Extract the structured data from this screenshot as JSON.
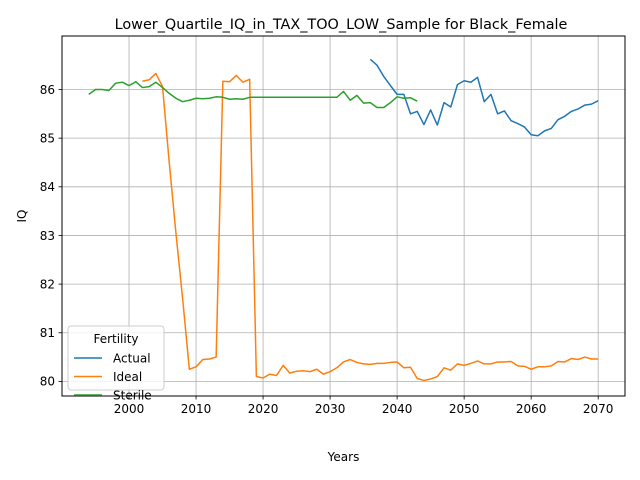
{
  "chart_data": {
    "type": "line",
    "title": "Lower_Quartile_IQ_in_TAX_TOO_LOW_Sample for Black_Female",
    "xlabel": "Years",
    "ylabel": "IQ",
    "xlim": [
      1990,
      2074
    ],
    "ylim": [
      79.7,
      87.1
    ],
    "xticks": [
      2000,
      2010,
      2020,
      2030,
      2040,
      2050,
      2060,
      2070
    ],
    "yticks": [
      80,
      81,
      82,
      83,
      84,
      85,
      86
    ],
    "grid": true,
    "legend": {
      "title": "Fertility",
      "position": "lower-left"
    },
    "series": [
      {
        "name": "Actual",
        "color": "#1f77b4",
        "points": [
          [
            2036,
            86.62
          ],
          [
            2037,
            86.5
          ],
          [
            2038,
            86.27
          ],
          [
            2039,
            86.08
          ],
          [
            2040,
            85.9
          ],
          [
            2041,
            85.9
          ],
          [
            2042,
            85.5
          ],
          [
            2043,
            85.55
          ],
          [
            2044,
            85.28
          ],
          [
            2045,
            85.58
          ],
          [
            2046,
            85.27
          ],
          [
            2047,
            85.73
          ],
          [
            2048,
            85.64
          ],
          [
            2049,
            86.1
          ],
          [
            2050,
            86.18
          ],
          [
            2051,
            86.15
          ],
          [
            2052,
            86.25
          ],
          [
            2053,
            85.75
          ],
          [
            2054,
            85.9
          ],
          [
            2055,
            85.5
          ],
          [
            2056,
            85.56
          ],
          [
            2057,
            85.36
          ],
          [
            2058,
            85.3
          ],
          [
            2059,
            85.23
          ],
          [
            2060,
            85.07
          ],
          [
            2061,
            85.05
          ],
          [
            2062,
            85.15
          ],
          [
            2063,
            85.2
          ],
          [
            2064,
            85.38
          ],
          [
            2065,
            85.45
          ],
          [
            2066,
            85.55
          ],
          [
            2067,
            85.6
          ],
          [
            2068,
            85.68
          ],
          [
            2069,
            85.7
          ],
          [
            2070,
            85.77
          ]
        ]
      },
      {
        "name": "Ideal",
        "color": "#ff7f0e",
        "points": [
          [
            2002,
            86.17
          ],
          [
            2003,
            86.2
          ],
          [
            2004,
            86.33
          ],
          [
            2005,
            86.06
          ],
          [
            2006,
            84.5
          ],
          [
            2007,
            83.05
          ],
          [
            2008,
            81.7
          ],
          [
            2009,
            80.25
          ],
          [
            2010,
            80.3
          ],
          [
            2011,
            80.45
          ],
          [
            2012,
            80.46
          ],
          [
            2013,
            80.5
          ],
          [
            2014,
            86.17
          ],
          [
            2015,
            86.16
          ],
          [
            2016,
            86.29
          ],
          [
            2017,
            86.15
          ],
          [
            2018,
            86.21
          ],
          [
            2019,
            80.1
          ],
          [
            2020,
            80.07
          ],
          [
            2021,
            80.15
          ],
          [
            2022,
            80.12
          ],
          [
            2023,
            80.33
          ],
          [
            2024,
            80.17
          ],
          [
            2025,
            80.21
          ],
          [
            2026,
            80.22
          ],
          [
            2027,
            80.2
          ],
          [
            2028,
            80.25
          ],
          [
            2029,
            80.15
          ],
          [
            2030,
            80.2
          ],
          [
            2031,
            80.28
          ],
          [
            2032,
            80.4
          ],
          [
            2033,
            80.45
          ],
          [
            2034,
            80.39
          ],
          [
            2035,
            80.36
          ],
          [
            2036,
            80.35
          ],
          [
            2037,
            80.37
          ],
          [
            2038,
            80.37
          ],
          [
            2039,
            80.39
          ],
          [
            2040,
            80.4
          ],
          [
            2041,
            80.28
          ],
          [
            2042,
            80.29
          ],
          [
            2043,
            80.06
          ],
          [
            2044,
            80.02
          ],
          [
            2045,
            80.05
          ],
          [
            2046,
            80.1
          ],
          [
            2047,
            80.28
          ],
          [
            2048,
            80.23
          ],
          [
            2049,
            80.36
          ],
          [
            2050,
            80.33
          ],
          [
            2051,
            80.37
          ],
          [
            2052,
            80.42
          ],
          [
            2053,
            80.36
          ],
          [
            2054,
            80.36
          ],
          [
            2055,
            80.4
          ],
          [
            2056,
            80.4
          ],
          [
            2057,
            80.41
          ],
          [
            2058,
            80.32
          ],
          [
            2059,
            80.31
          ],
          [
            2060,
            80.25
          ],
          [
            2061,
            80.3
          ],
          [
            2062,
            80.3
          ],
          [
            2063,
            80.32
          ],
          [
            2064,
            80.41
          ],
          [
            2065,
            80.4
          ],
          [
            2066,
            80.47
          ],
          [
            2067,
            80.45
          ],
          [
            2068,
            80.5
          ],
          [
            2069,
            80.46
          ],
          [
            2070,
            80.46
          ]
        ]
      },
      {
        "name": "Sterile",
        "color": "#2ca02c",
        "points": [
          [
            1994,
            85.9
          ],
          [
            1995,
            86.0
          ],
          [
            1996,
            86.0
          ],
          [
            1997,
            85.98
          ],
          [
            1998,
            86.13
          ],
          [
            1999,
            86.15
          ],
          [
            2000,
            86.08
          ],
          [
            2001,
            86.16
          ],
          [
            2002,
            86.04
          ],
          [
            2003,
            86.06
          ],
          [
            2004,
            86.15
          ],
          [
            2005,
            86.04
          ],
          [
            2006,
            85.92
          ],
          [
            2007,
            85.82
          ],
          [
            2008,
            85.75
          ],
          [
            2009,
            85.78
          ],
          [
            2010,
            85.82
          ],
          [
            2011,
            85.81
          ],
          [
            2012,
            85.82
          ],
          [
            2013,
            85.85
          ],
          [
            2014,
            85.84
          ],
          [
            2015,
            85.8
          ],
          [
            2016,
            85.81
          ],
          [
            2017,
            85.8
          ],
          [
            2018,
            85.84
          ],
          [
            2019,
            85.84
          ],
          [
            2020,
            85.84
          ],
          [
            2021,
            85.84
          ],
          [
            2022,
            85.84
          ],
          [
            2023,
            85.84
          ],
          [
            2024,
            85.84
          ],
          [
            2025,
            85.84
          ],
          [
            2026,
            85.84
          ],
          [
            2027,
            85.84
          ],
          [
            2028,
            85.84
          ],
          [
            2029,
            85.84
          ],
          [
            2030,
            85.84
          ],
          [
            2031,
            85.84
          ],
          [
            2032,
            85.96
          ],
          [
            2033,
            85.78
          ],
          [
            2034,
            85.88
          ],
          [
            2035,
            85.72
          ],
          [
            2036,
            85.73
          ],
          [
            2037,
            85.63
          ],
          [
            2038,
            85.63
          ],
          [
            2039,
            85.73
          ],
          [
            2040,
            85.85
          ],
          [
            2041,
            85.82
          ],
          [
            2042,
            85.83
          ],
          [
            2043,
            85.76
          ]
        ]
      }
    ]
  }
}
